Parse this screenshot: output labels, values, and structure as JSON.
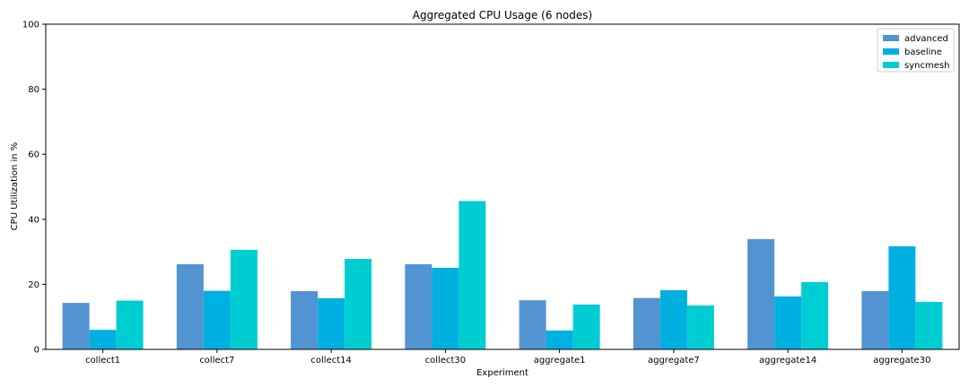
{
  "chart_data": {
    "type": "bar",
    "title": "Aggregated CPU Usage (6 nodes)",
    "xlabel": "Experiment",
    "ylabel": "CPU Utilization in %",
    "ylim": [
      0,
      100
    ],
    "yticks": [
      "0",
      "20",
      "40",
      "60",
      "80",
      "100"
    ],
    "grid": false,
    "legend_placement": "top-right",
    "categories": [
      "collect1",
      "collect7",
      "collect14",
      "collect30",
      "aggregate1",
      "aggregate7",
      "aggregate14",
      "aggregate30"
    ],
    "series": [
      {
        "name": "advanced",
        "color": "#5294d1",
        "values": [
          14.3,
          26.2,
          17.9,
          26.2,
          15.1,
          15.8,
          33.9,
          17.9
        ]
      },
      {
        "name": "baseline",
        "color": "#00b0e0",
        "values": [
          6.0,
          18.0,
          15.7,
          25.1,
          5.8,
          18.2,
          16.3,
          31.7
        ]
      },
      {
        "name": "syncmesh",
        "color": "#00cdd2",
        "values": [
          15.0,
          30.6,
          27.8,
          45.6,
          13.8,
          13.5,
          20.7,
          14.6
        ]
      }
    ]
  }
}
